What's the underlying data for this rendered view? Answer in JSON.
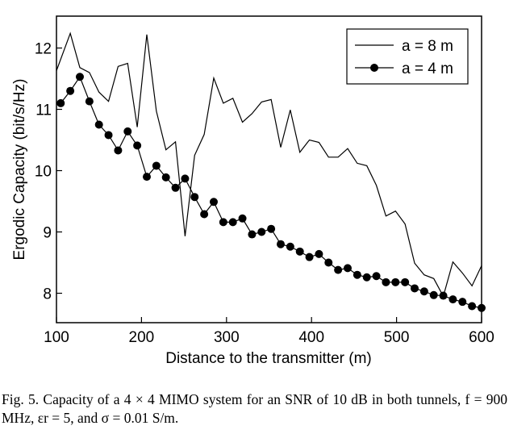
{
  "chart_data": {
    "type": "line",
    "x_label": "Distance to the transmitter (m)",
    "y_label": "Ergodic Capacity (bit/s/Hz)",
    "xlim": [
      100,
      600
    ],
    "xticks": [
      100,
      200,
      300,
      400,
      500,
      600
    ],
    "ylim": [
      7.52,
      12.52
    ],
    "yticks": [
      8,
      9,
      10,
      11,
      12
    ],
    "legend": "top-right",
    "series": [
      {
        "name": "a = 8 m",
        "color": "#000000",
        "marker": "none",
        "x": [
          100,
          116.25,
          127.5,
          138.75,
          150,
          161.25,
          172.5,
          183.75,
          195,
          206.25,
          217.5,
          228.75,
          240,
          251.25,
          262.5,
          273.75,
          285,
          296.25,
          307.5,
          318.75,
          330,
          341.25,
          352.5,
          363.75,
          375,
          386.25,
          397.5,
          408.75,
          420,
          431.25,
          442.5,
          453.75,
          465,
          476.25,
          487.5,
          498.75,
          510,
          521.25,
          532.5,
          543.75,
          555,
          566.25,
          577.5,
          588.75,
          600
        ],
        "values": [
          11.63,
          12.24,
          11.68,
          11.6,
          11.28,
          11.13,
          11.7,
          11.75,
          10.71,
          12.22,
          10.97,
          10.34,
          10.47,
          8.93,
          10.25,
          10.59,
          11.51,
          11.1,
          11.18,
          10.79,
          10.93,
          11.12,
          11.16,
          10.38,
          10.99,
          10.3,
          10.5,
          10.46,
          10.22,
          10.22,
          10.36,
          10.12,
          10.08,
          9.76,
          9.26,
          9.34,
          9.13,
          8.49,
          8.3,
          8.24,
          7.95,
          8.51,
          8.33,
          8.12,
          8.45
        ]
      },
      {
        "name": "a = 4 m",
        "color": "#000000",
        "marker": "circle",
        "x": [
          105,
          116.25,
          127.5,
          138.75,
          150,
          161.25,
          172.5,
          183.75,
          195,
          206.25,
          217.5,
          228.75,
          240,
          251.25,
          262.5,
          273.75,
          285,
          296.25,
          307.5,
          318.75,
          330,
          341.25,
          352.5,
          363.75,
          375,
          386.25,
          397.5,
          408.75,
          420,
          431.25,
          442.5,
          453.75,
          465,
          476.25,
          487.5,
          498.75,
          510,
          521.25,
          532.5,
          543.75,
          555,
          566.25,
          577.5,
          588.75,
          600
        ],
        "values": [
          11.1,
          11.3,
          11.53,
          11.13,
          10.75,
          10.58,
          10.33,
          10.64,
          10.41,
          9.9,
          10.08,
          9.89,
          9.72,
          9.87,
          9.57,
          9.29,
          9.49,
          9.16,
          9.16,
          9.22,
          8.96,
          9.0,
          9.05,
          8.8,
          8.76,
          8.68,
          8.59,
          8.64,
          8.5,
          8.38,
          8.41,
          8.3,
          8.26,
          8.28,
          8.18,
          8.18,
          8.18,
          8.08,
          8.03,
          7.97,
          7.96,
          7.9,
          7.86,
          7.79,
          7.76
        ]
      }
    ],
    "caption": "Fig. 5.   Capacity of a 4 × 4 MIMO system for an SNR of 10 dB in both tunnels, f = 900 MHz, εr = 5, and σ = 0.01 S/m."
  }
}
